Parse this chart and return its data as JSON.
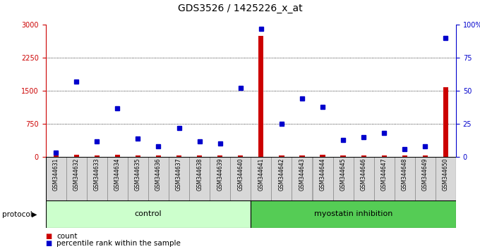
{
  "title": "GDS3526 / 1425226_x_at",
  "samples": [
    "GSM344631",
    "GSM344632",
    "GSM344633",
    "GSM344634",
    "GSM344635",
    "GSM344636",
    "GSM344637",
    "GSM344638",
    "GSM344639",
    "GSM344640",
    "GSM344641",
    "GSM344642",
    "GSM344643",
    "GSM344644",
    "GSM344645",
    "GSM344646",
    "GSM344647",
    "GSM344648",
    "GSM344649",
    "GSM344650"
  ],
  "count_values": [
    40,
    55,
    40,
    50,
    40,
    40,
    40,
    40,
    40,
    40,
    2750,
    40,
    40,
    50,
    40,
    40,
    40,
    40,
    40,
    1580
  ],
  "percentile_values": [
    3,
    57,
    12,
    37,
    14,
    8,
    22,
    12,
    10,
    52,
    97,
    25,
    44,
    38,
    13,
    15,
    18,
    6,
    8,
    90
  ],
  "control_count": 10,
  "myostatin_count": 10,
  "control_label": "control",
  "myostatin_label": "myostatin inhibition",
  "protocol_label": "protocol",
  "legend_count": "count",
  "legend_percentile": "percentile rank within the sample",
  "ylim_left": [
    0,
    3000
  ],
  "ylim_right": [
    0,
    100
  ],
  "yticks_left": [
    0,
    750,
    1500,
    2250,
    3000
  ],
  "yticks_right": [
    0,
    25,
    50,
    75,
    100
  ],
  "count_color": "#cc0000",
  "percentile_color": "#0000cc",
  "control_bg": "#ccffcc",
  "myostatin_bg": "#55cc55",
  "plot_bg": "#ffffff",
  "sample_bg": "#d8d8d8",
  "title_fontsize": 10,
  "tick_fontsize": 7,
  "label_fontsize": 8
}
